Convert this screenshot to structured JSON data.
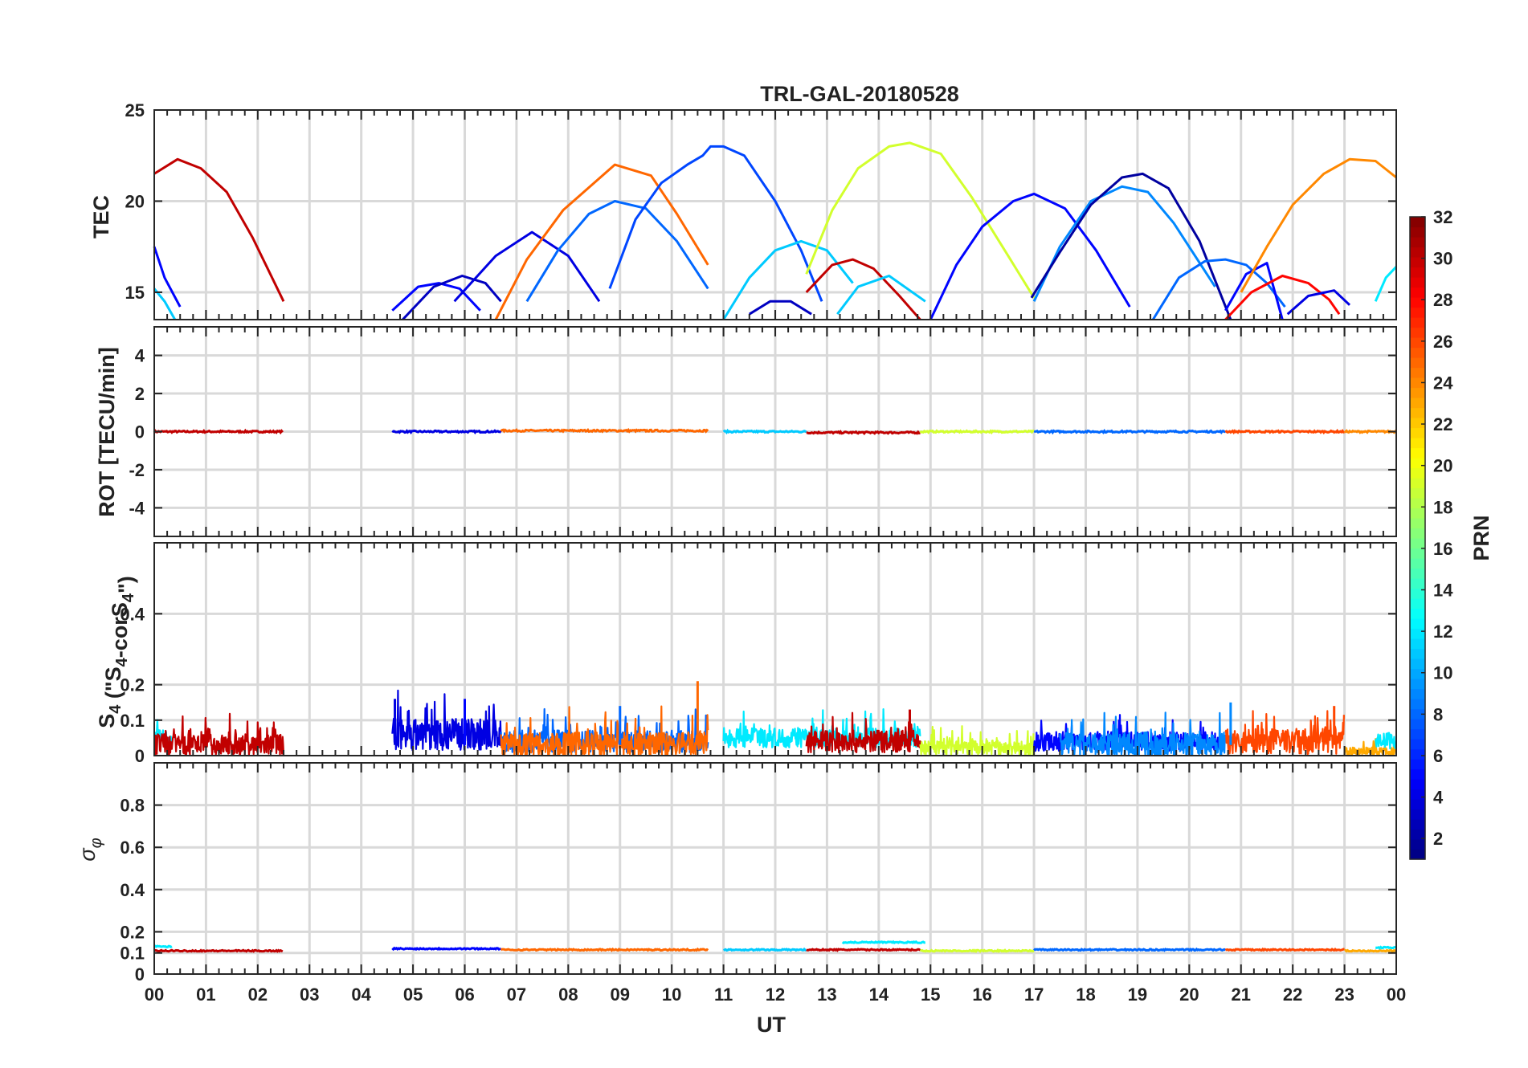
{
  "chart_data": {
    "type": "line",
    "title": "TRL-GAL-20180528",
    "xlabel": "UT",
    "xlim": [
      0,
      24
    ],
    "x_tick_labels": [
      "00",
      "01",
      "02",
      "03",
      "04",
      "05",
      "06",
      "07",
      "08",
      "09",
      "10",
      "11",
      "12",
      "13",
      "14",
      "15",
      "16",
      "17",
      "18",
      "19",
      "20",
      "21",
      "22",
      "23",
      "00"
    ],
    "colorbar": {
      "label": "PRN",
      "range": [
        1,
        32
      ],
      "tick_labels": [
        "2",
        "4",
        "6",
        "8",
        "10",
        "12",
        "14",
        "16",
        "18",
        "20",
        "22",
        "24",
        "26",
        "28",
        "30",
        "32"
      ],
      "colormap": "jet"
    },
    "panels": [
      {
        "id": "tec",
        "ylabel": "TEC",
        "ylim": [
          13.5,
          25
        ],
        "ytick_labels": [
          {
            "v": 15,
            "t": "15"
          },
          {
            "v": 20,
            "t": "20"
          },
          {
            "v": 25,
            "t": "25"
          }
        ],
        "series": [
          {
            "prn": 30,
            "x": [
              0.0,
              0.45,
              0.9,
              1.4,
              1.9,
              2.5
            ],
            "y": [
              21.5,
              22.3,
              21.8,
              20.5,
              18.0,
              14.5
            ]
          },
          {
            "prn": 5,
            "x": [
              0.0,
              0.2,
              0.5
            ],
            "y": [
              17.5,
              15.8,
              14.2
            ]
          },
          {
            "prn": 11,
            "x": [
              0.0,
              0.2,
              0.4
            ],
            "y": [
              15.2,
              14.5,
              13.5
            ]
          },
          {
            "prn": 5,
            "x": [
              4.6,
              5.1,
              5.5,
              5.9,
              6.3
            ],
            "y": [
              14.0,
              15.3,
              15.5,
              15.2,
              14.0
            ]
          },
          {
            "prn": 3,
            "x": [
              4.8,
              5.4,
              5.95,
              6.4,
              6.7
            ],
            "y": [
              13.5,
              15.3,
              15.9,
              15.5,
              14.5
            ]
          },
          {
            "prn": 4,
            "x": [
              5.8,
              6.6,
              7.3,
              8.0,
              8.6
            ],
            "y": [
              14.5,
              17.0,
              18.3,
              17.0,
              14.5
            ]
          },
          {
            "prn": 25,
            "x": [
              6.6,
              7.2,
              7.9,
              8.9,
              9.6,
              10.1,
              10.7
            ],
            "y": [
              13.5,
              16.8,
              19.5,
              22.0,
              21.4,
              19.3,
              16.5
            ]
          },
          {
            "prn": 8,
            "x": [
              7.2,
              7.8,
              8.4,
              8.9,
              9.5,
              10.1,
              10.7
            ],
            "y": [
              14.5,
              17.3,
              19.3,
              20.0,
              19.6,
              17.8,
              15.2
            ]
          },
          {
            "prn": 7,
            "x": [
              8.8,
              9.3,
              9.8,
              10.3,
              10.6,
              10.75,
              11.0,
              11.4,
              12.0,
              12.5,
              12.9
            ],
            "y": [
              15.2,
              19.0,
              21.0,
              22.0,
              22.5,
              23.0,
              23.0,
              22.5,
              20.0,
              17.3,
              14.5
            ]
          },
          {
            "prn": 11,
            "x": [
              11.0,
              11.5,
              12.0,
              12.5,
              13.0,
              13.5
            ],
            "y": [
              13.5,
              15.8,
              17.3,
              17.8,
              17.3,
              15.5
            ]
          },
          {
            "prn": 3,
            "x": [
              11.5,
              11.9,
              12.3,
              12.7
            ],
            "y": [
              13.8,
              14.5,
              14.5,
              13.8
            ]
          },
          {
            "prn": 30,
            "x": [
              12.6,
              13.1,
              13.5,
              13.9,
              14.4,
              14.8
            ],
            "y": [
              15.0,
              16.5,
              16.8,
              16.3,
              14.8,
              13.5
            ]
          },
          {
            "prn": 11,
            "x": [
              13.2,
              13.6,
              14.2,
              14.9
            ],
            "y": [
              13.8,
              15.3,
              15.9,
              14.5
            ]
          },
          {
            "prn": 19,
            "x": [
              12.6,
              13.1,
              13.6,
              14.2,
              14.6,
              15.2,
              15.8,
              16.5,
              17.0
            ],
            "y": [
              16.0,
              19.5,
              21.8,
              23.0,
              23.2,
              22.6,
              20.2,
              17.0,
              14.7
            ]
          },
          {
            "prn": 5,
            "x": [
              15.0,
              15.5,
              16.0,
              16.6,
              17.0,
              17.6,
              18.2,
              18.85
            ],
            "y": [
              13.5,
              16.5,
              18.6,
              20.0,
              20.4,
              19.6,
              17.3,
              14.2
            ]
          },
          {
            "prn": 9,
            "x": [
              17.0,
              17.5,
              18.1,
              18.7,
              19.2,
              19.7,
              20.5
            ],
            "y": [
              14.5,
              17.5,
              20.0,
              20.8,
              20.5,
              18.8,
              15.3
            ]
          },
          {
            "prn": 2,
            "x": [
              16.95,
              17.5,
              18.1,
              18.7,
              19.1,
              19.6,
              20.2,
              20.8
            ],
            "y": [
              14.7,
              17.2,
              19.8,
              21.3,
              21.5,
              20.7,
              17.8,
              13.5
            ]
          },
          {
            "prn": 8,
            "x": [
              19.3,
              19.8,
              20.3,
              20.7,
              21.1,
              21.5,
              21.85
            ],
            "y": [
              13.5,
              15.8,
              16.7,
              16.8,
              16.5,
              15.5,
              14.2
            ]
          },
          {
            "prn": 5,
            "x": [
              20.7,
              21.1,
              21.5,
              21.8
            ],
            "y": [
              14.0,
              16.0,
              16.6,
              13.5
            ]
          },
          {
            "prn": 28,
            "x": [
              20.7,
              21.2,
              21.8,
              22.3,
              22.7,
              22.9
            ],
            "y": [
              13.5,
              15.0,
              15.9,
              15.5,
              14.6,
              13.8
            ]
          },
          {
            "prn": 4,
            "x": [
              21.9,
              22.3,
              22.8,
              23.1
            ],
            "y": [
              13.8,
              14.8,
              15.1,
              14.3
            ]
          },
          {
            "prn": 24,
            "x": [
              21.0,
              21.5,
              22.0,
              22.6,
              23.1,
              23.6,
              24.0
            ],
            "y": [
              15.0,
              17.5,
              19.8,
              21.5,
              22.3,
              22.2,
              21.3
            ]
          },
          {
            "prn": 12,
            "x": [
              23.6,
              23.8,
              24.0
            ],
            "y": [
              14.5,
              15.8,
              16.4
            ]
          }
        ]
      },
      {
        "id": "rot",
        "ylabel": "ROT [TECU/min]",
        "ylim": [
          -5.5,
          5.5
        ],
        "ytick_labels": [
          {
            "v": -4,
            "t": "-4"
          },
          {
            "v": -2,
            "t": "-2"
          },
          {
            "v": 0,
            "t": "0"
          },
          {
            "v": 2,
            "t": "2"
          },
          {
            "v": 4,
            "t": "4"
          }
        ],
        "segments": [
          {
            "prn": 30,
            "x0": 0.0,
            "x1": 2.5,
            "level": 0.0
          },
          {
            "prn": 4,
            "x0": 4.6,
            "x1": 6.7,
            "level": 0.0
          },
          {
            "prn": 25,
            "x0": 6.7,
            "x1": 10.7,
            "level": 0.05
          },
          {
            "prn": 11,
            "x0": 11.0,
            "x1": 12.6,
            "level": 0.0
          },
          {
            "prn": 30,
            "x0": 12.6,
            "x1": 14.8,
            "level": -0.05
          },
          {
            "prn": 19,
            "x0": 14.8,
            "x1": 17.0,
            "level": 0.0
          },
          {
            "prn": 8,
            "x0": 17.0,
            "x1": 20.7,
            "level": 0.0
          },
          {
            "prn": 26,
            "x0": 20.7,
            "x1": 23.0,
            "level": 0.0
          },
          {
            "prn": 24,
            "x0": 23.0,
            "x1": 24.0,
            "level": 0.0
          }
        ]
      },
      {
        "id": "s4",
        "ylabel": "S4 (\"S4-corS4\")",
        "ylim": [
          0,
          0.6
        ],
        "ytick_labels": [
          {
            "v": 0,
            "t": "0"
          },
          {
            "v": 0.1,
            "t": "0.1"
          },
          {
            "v": 0.2,
            "t": "0.2"
          },
          {
            "v": 0.4,
            "t": "0.4"
          }
        ],
        "bands": [
          {
            "prn": 12,
            "x0": 0.0,
            "x1": 0.35,
            "base": 0.05,
            "amp": 0.05
          },
          {
            "prn": 30,
            "x0": 0.0,
            "x1": 2.5,
            "base": 0.03,
            "amp": 0.07
          },
          {
            "prn": 4,
            "x0": 4.6,
            "x1": 6.7,
            "base": 0.06,
            "amp": 0.1
          },
          {
            "prn": 8,
            "x0": 6.7,
            "x1": 10.7,
            "base": 0.04,
            "amp": 0.07
          },
          {
            "prn": 25,
            "x0": 6.7,
            "x1": 10.7,
            "base": 0.03,
            "amp": 0.08
          },
          {
            "prn": 12,
            "x0": 11.0,
            "x1": 14.8,
            "base": 0.05,
            "amp": 0.06
          },
          {
            "prn": 30,
            "x0": 12.6,
            "x1": 14.8,
            "base": 0.04,
            "amp": 0.07
          },
          {
            "prn": 19,
            "x0": 14.8,
            "x1": 17.0,
            "base": 0.02,
            "amp": 0.05
          },
          {
            "prn": 5,
            "x0": 17.0,
            "x1": 20.7,
            "base": 0.04,
            "amp": 0.06
          },
          {
            "prn": 9,
            "x0": 17.5,
            "x1": 20.7,
            "base": 0.03,
            "amp": 0.08
          },
          {
            "prn": 26,
            "x0": 20.7,
            "x1": 23.0,
            "base": 0.04,
            "amp": 0.08
          },
          {
            "prn": 23,
            "x0": 23.0,
            "x1": 24.0,
            "base": 0.01,
            "amp": 0.03
          },
          {
            "prn": 12,
            "x0": 23.6,
            "x1": 24.0,
            "base": 0.04,
            "amp": 0.05
          }
        ],
        "spikes": [
          {
            "prn": 4,
            "x": 4.65,
            "y": 0.16
          },
          {
            "prn": 5,
            "x": 6.0,
            "y": 0.16
          },
          {
            "prn": 8,
            "x": 9.0,
            "y": 0.14
          },
          {
            "prn": 25,
            "x": 10.5,
            "y": 0.21
          },
          {
            "prn": 30,
            "x": 14.6,
            "y": 0.13
          },
          {
            "prn": 9,
            "x": 20.8,
            "y": 0.15
          },
          {
            "prn": 26,
            "x": 22.8,
            "y": 0.14
          }
        ]
      },
      {
        "id": "sigma_phi",
        "ylabel": "σφ",
        "ylim": [
          0,
          1.0
        ],
        "ytick_labels": [
          {
            "v": 0,
            "t": "0"
          },
          {
            "v": 0.1,
            "t": "0.1"
          },
          {
            "v": 0.2,
            "t": "0.2"
          },
          {
            "v": 0.4,
            "t": "0.4"
          },
          {
            "v": 0.6,
            "t": "0.6"
          },
          {
            "v": 0.8,
            "t": "0.8"
          }
        ],
        "segments": [
          {
            "prn": 12,
            "x0": 0.0,
            "x1": 0.35,
            "level": 0.13
          },
          {
            "prn": 30,
            "x0": 0.0,
            "x1": 2.5,
            "level": 0.11
          },
          {
            "prn": 5,
            "x0": 4.6,
            "x1": 6.7,
            "level": 0.12
          },
          {
            "prn": 25,
            "x0": 6.7,
            "x1": 10.7,
            "level": 0.115
          },
          {
            "prn": 11,
            "x0": 11.0,
            "x1": 12.6,
            "level": 0.115
          },
          {
            "prn": 30,
            "x0": 12.6,
            "x1": 14.8,
            "level": 0.115
          },
          {
            "prn": 12,
            "x0": 13.3,
            "x1": 14.9,
            "level": 0.15
          },
          {
            "prn": 19,
            "x0": 14.8,
            "x1": 17.0,
            "level": 0.11
          },
          {
            "prn": 8,
            "x0": 17.0,
            "x1": 20.7,
            "level": 0.115
          },
          {
            "prn": 26,
            "x0": 20.7,
            "x1": 23.0,
            "level": 0.115
          },
          {
            "prn": 23,
            "x0": 23.0,
            "x1": 24.0,
            "level": 0.11
          },
          {
            "prn": 12,
            "x0": 23.6,
            "x1": 24.0,
            "level": 0.125
          }
        ]
      }
    ]
  }
}
